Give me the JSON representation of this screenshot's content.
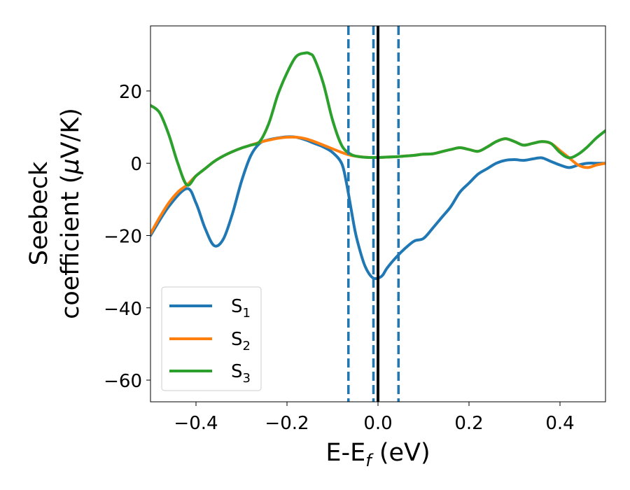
{
  "chart_data": {
    "type": "line",
    "title": "",
    "xlabel": "E-E",
    "xlabel_sub": "f",
    "xlabel_unit": " (eV)",
    "ylabel_line1": "Seebeck",
    "ylabel_line2": "coefficient  (",
    "ylabel_mu": "μ",
    "ylabel_unit": "V/K)",
    "xlim": [
      -0.5,
      0.5
    ],
    "ylim": [
      -66,
      38
    ],
    "xticks": [
      -0.4,
      -0.2,
      0.0,
      0.2,
      0.4
    ],
    "xtick_labels": [
      "−0.4",
      "−0.2",
      "0.0",
      "0.2",
      "0.4"
    ],
    "yticks": [
      -60,
      -40,
      -20,
      0,
      20
    ],
    "ytick_labels": [
      "−60",
      "−40",
      "−20",
      "0",
      "20"
    ],
    "grid": false,
    "legend_position": "lower-left",
    "series": [
      {
        "name": "S",
        "sub": "1",
        "color": "#1f77b4",
        "x": [
          -0.5,
          -0.46,
          -0.42,
          -0.4,
          -0.38,
          -0.36,
          -0.34,
          -0.32,
          -0.3,
          -0.28,
          -0.26,
          -0.24,
          -0.22,
          -0.2,
          -0.18,
          -0.16,
          -0.14,
          -0.12,
          -0.1,
          -0.08,
          -0.07,
          -0.06,
          -0.05,
          -0.04,
          -0.03,
          -0.02,
          -0.01,
          0.0,
          0.01,
          0.02,
          0.04,
          0.06,
          0.08,
          0.1,
          0.12,
          0.14,
          0.16,
          0.18,
          0.2,
          0.22,
          0.24,
          0.26,
          0.28,
          0.3,
          0.32,
          0.34,
          0.36,
          0.38,
          0.4,
          0.42,
          0.44,
          0.46,
          0.48,
          0.5
        ],
        "y": [
          -20,
          -12,
          -7,
          -11,
          -18,
          -22.8,
          -21,
          -14,
          -5,
          2,
          5.5,
          6.5,
          7,
          7.3,
          7.2,
          6.5,
          5.5,
          4.5,
          3,
          0,
          -5,
          -12,
          -19,
          -24,
          -28,
          -30.5,
          -31.8,
          -31.8,
          -31,
          -29,
          -26,
          -23.5,
          -21.5,
          -20.8,
          -18,
          -15,
          -12,
          -8,
          -5.5,
          -3,
          -1.5,
          0,
          0.8,
          1,
          0.8,
          1.2,
          1.5,
          0.5,
          -0.5,
          -1.2,
          -0.5,
          0,
          0,
          0
        ]
      },
      {
        "name": "S",
        "sub": "2",
        "color": "#ff7f0e",
        "x": [
          -0.5,
          -0.48,
          -0.46,
          -0.44,
          -0.42,
          -0.4,
          -0.38,
          -0.36,
          -0.34,
          -0.32,
          -0.3,
          -0.28,
          -0.26,
          -0.24,
          -0.22,
          -0.2,
          -0.18,
          -0.16,
          -0.14,
          -0.12,
          -0.1,
          -0.08,
          -0.06,
          -0.04,
          -0.02,
          0.0,
          0.02,
          0.04,
          0.06,
          0.08,
          0.1,
          0.12,
          0.14,
          0.16,
          0.18,
          0.2,
          0.22,
          0.24,
          0.26,
          0.28,
          0.3,
          0.32,
          0.34,
          0.36,
          0.38,
          0.4,
          0.42,
          0.44,
          0.46,
          0.48,
          0.5
        ],
        "y": [
          -19.5,
          -15,
          -11,
          -8,
          -6,
          -3.5,
          -1.5,
          0.5,
          2,
          3.2,
          4.2,
          5,
          5.8,
          6.4,
          6.9,
          7.2,
          7.2,
          6.8,
          6,
          5,
          4,
          3,
          2.2,
          1.8,
          1.6,
          1.6,
          1.7,
          1.8,
          2,
          2.2,
          2.5,
          2.6,
          3.2,
          3.8,
          4.3,
          3.8,
          3.3,
          4.5,
          6,
          6.8,
          6,
          5,
          5.5,
          6,
          5.5,
          3.5,
          1.5,
          -0.5,
          -1.2,
          -0.5,
          0
        ]
      },
      {
        "name": "S",
        "sub": "3",
        "color": "#2ca02c",
        "x": [
          -0.5,
          -0.48,
          -0.46,
          -0.44,
          -0.42,
          -0.4,
          -0.38,
          -0.36,
          -0.34,
          -0.32,
          -0.3,
          -0.28,
          -0.26,
          -0.24,
          -0.22,
          -0.2,
          -0.18,
          -0.16,
          -0.15,
          -0.14,
          -0.12,
          -0.1,
          -0.08,
          -0.06,
          -0.04,
          -0.02,
          0.0,
          0.02,
          0.04,
          0.06,
          0.08,
          0.1,
          0.12,
          0.14,
          0.16,
          0.18,
          0.2,
          0.22,
          0.24,
          0.26,
          0.28,
          0.3,
          0.32,
          0.34,
          0.36,
          0.38,
          0.4,
          0.42,
          0.44,
          0.46,
          0.48,
          0.5
        ],
        "y": [
          16,
          14,
          8,
          0,
          -6,
          -3.5,
          -1.5,
          0.5,
          2,
          3.2,
          4.2,
          5,
          6,
          11,
          19,
          25,
          29.5,
          30.5,
          30.3,
          29,
          22,
          12,
          5,
          2.5,
          1.8,
          1.6,
          1.6,
          1.7,
          1.8,
          2,
          2.2,
          2.5,
          2.6,
          3.2,
          3.8,
          4.3,
          3.8,
          3.3,
          4.5,
          6,
          6.8,
          6,
          5,
          5.5,
          6,
          5.5,
          3,
          1.5,
          2.5,
          4.5,
          7,
          9
        ]
      }
    ],
    "vlines": [
      {
        "x": -0.065,
        "style": "dashed",
        "color": "#1f77b4"
      },
      {
        "x": -0.01,
        "style": "dashed",
        "color": "#1f77b4"
      },
      {
        "x": 0.0,
        "style": "solid",
        "color": "#000000"
      },
      {
        "x": 0.045,
        "style": "dashed",
        "color": "#1f77b4"
      }
    ]
  }
}
